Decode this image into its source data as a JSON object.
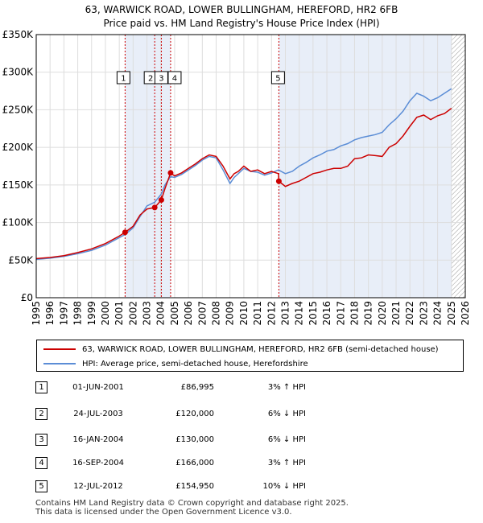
{
  "title_line1": "63, WARWICK ROAD, LOWER BULLINGHAM, HEREFORD, HR2 6FB",
  "title_line2": "Price paid vs. HM Land Registry's House Price Index (HPI)",
  "colors": {
    "property": "#cc0000",
    "hpi": "#5b8dd6",
    "shade": "#e8eef8",
    "grid": "#dddddd",
    "vline": "#cc0000"
  },
  "legend": {
    "property": "63, WARWICK ROAD, LOWER BULLINGHAM, HEREFORD, HR2 6FB (semi-detached house)",
    "hpi": "HPI: Average price, semi-detached house, Herefordshire"
  },
  "sales": [
    {
      "num": "1",
      "date": "01-JUN-2001",
      "price": "£86,995",
      "hpi": "3% ↑ HPI"
    },
    {
      "num": "2",
      "date": "24-JUL-2003",
      "price": "£120,000",
      "hpi": "6% ↓ HPI"
    },
    {
      "num": "3",
      "date": "16-JAN-2004",
      "price": "£130,000",
      "hpi": "6% ↓ HPI"
    },
    {
      "num": "4",
      "date": "16-SEP-2004",
      "price": "£166,000",
      "hpi": "3% ↑ HPI"
    },
    {
      "num": "5",
      "date": "12-JUL-2012",
      "price": "£154,950",
      "hpi": "10% ↓ HPI"
    }
  ],
  "footer_line1": "Contains HM Land Registry data © Crown copyright and database right 2025.",
  "footer_line2": "This data is licensed under the Open Government Licence v3.0.",
  "chart_data": {
    "type": "line",
    "title": "63, WARWICK ROAD, LOWER BULLINGHAM, HEREFORD, HR2 6FB",
    "subtitle": "Price paid vs. HM Land Registry's House Price Index (HPI)",
    "xlim": [
      1995,
      2026
    ],
    "ylim": [
      0,
      350000
    ],
    "x_ticks": [
      1995,
      1996,
      1997,
      1998,
      1999,
      2000,
      2001,
      2002,
      2003,
      2004,
      2005,
      2006,
      2007,
      2008,
      2009,
      2010,
      2011,
      2012,
      2013,
      2014,
      2015,
      2016,
      2017,
      2018,
      2019,
      2020,
      2021,
      2022,
      2023,
      2024,
      2025,
      2026
    ],
    "y_ticks": [
      {
        "value": 0,
        "label": "£0"
      },
      {
        "value": 50000,
        "label": "£50K"
      },
      {
        "value": 100000,
        "label": "£100K"
      },
      {
        "value": 150000,
        "label": "£150K"
      },
      {
        "value": 200000,
        "label": "£200K"
      },
      {
        "value": 250000,
        "label": "£250K"
      },
      {
        "value": 300000,
        "label": "£300K"
      },
      {
        "value": 350000,
        "label": "£350K"
      }
    ],
    "grid": true,
    "shaded_ranges": [
      [
        2001.42,
        2004.71
      ],
      [
        2012.53,
        2025.0
      ]
    ],
    "hatched_range": [
      2025.0,
      2026.0
    ],
    "sale_markers": [
      {
        "label": "1",
        "x": 2001.42,
        "y": 86995
      },
      {
        "label": "2",
        "x": 2003.56,
        "y": 120000
      },
      {
        "label": "3",
        "x": 2004.04,
        "y": 130000
      },
      {
        "label": "4",
        "x": 2004.71,
        "y": 166000
      },
      {
        "label": "5",
        "x": 2012.53,
        "y": 154950
      }
    ],
    "series": [
      {
        "name": "63, WARWICK ROAD, LOWER BULLINGHAM, HEREFORD, HR2 6FB (semi-detached house)",
        "color": "#cc0000",
        "x": [
          1995,
          1996,
          1997,
          1998,
          1999,
          2000,
          2001,
          2001.42,
          2002,
          2002.5,
          2003,
          2003.56,
          2004.04,
          2004.3,
          2004.71,
          2005,
          2005.5,
          2006,
          2006.5,
          2007,
          2007.5,
          2008,
          2008.5,
          2009,
          2009.3,
          2009.6,
          2010,
          2010.5,
          2011,
          2011.5,
          2012,
          2012.5,
          2012.53,
          2013,
          2013.5,
          2014,
          2014.5,
          2015,
          2015.5,
          2016,
          2016.5,
          2017,
          2017.5,
          2018,
          2018.5,
          2019,
          2019.5,
          2020,
          2020.5,
          2021,
          2021.5,
          2022,
          2022.5,
          2023,
          2023.5,
          2024,
          2024.5,
          2025
        ],
        "y": [
          52000,
          53500,
          56000,
          60000,
          65000,
          72000,
          82000,
          86995,
          95000,
          110000,
          118000,
          120000,
          130000,
          145000,
          166000,
          162000,
          166000,
          172000,
          178000,
          185000,
          190000,
          188000,
          175000,
          158000,
          165000,
          168000,
          175000,
          168000,
          170000,
          165000,
          168000,
          165000,
          154950,
          148000,
          152000,
          155000,
          160000,
          165000,
          167000,
          170000,
          172000,
          172000,
          175000,
          185000,
          186000,
          190000,
          189000,
          188000,
          200000,
          205000,
          215000,
          228000,
          240000,
          243000,
          237000,
          242000,
          245000,
          252000
        ]
      },
      {
        "name": "HPI: Average price, semi-detached house, Herefordshire",
        "color": "#5b8dd6",
        "x": [
          1995,
          1996,
          1997,
          1998,
          1999,
          2000,
          2001,
          2001.42,
          2002,
          2002.5,
          2003,
          2003.56,
          2004.04,
          2004.3,
          2004.71,
          2005,
          2005.5,
          2006,
          2006.5,
          2007,
          2007.5,
          2008,
          2008.5,
          2009,
          2009.3,
          2009.6,
          2010,
          2010.5,
          2011,
          2011.5,
          2012,
          2012.5,
          2013,
          2013.5,
          2014,
          2014.5,
          2015,
          2015.5,
          2016,
          2016.5,
          2017,
          2017.5,
          2018,
          2018.5,
          2019,
          2019.5,
          2020,
          2020.5,
          2021,
          2021.5,
          2022,
          2022.5,
          2023,
          2023.5,
          2024,
          2024.5,
          2025
        ],
        "y": [
          51000,
          52500,
          55000,
          58500,
          63000,
          70000,
          80000,
          84000,
          93000,
          108000,
          122000,
          127000,
          138000,
          150000,
          161000,
          160000,
          164000,
          170000,
          176000,
          183000,
          188000,
          186000,
          170000,
          152000,
          160000,
          165000,
          172000,
          168000,
          167000,
          163000,
          166000,
          170000,
          165000,
          168000,
          175000,
          180000,
          186000,
          190000,
          195000,
          197000,
          202000,
          205000,
          210000,
          213000,
          215000,
          217000,
          220000,
          230000,
          238000,
          248000,
          262000,
          272000,
          268000,
          262000,
          266000,
          272000,
          278000
        ]
      }
    ]
  }
}
